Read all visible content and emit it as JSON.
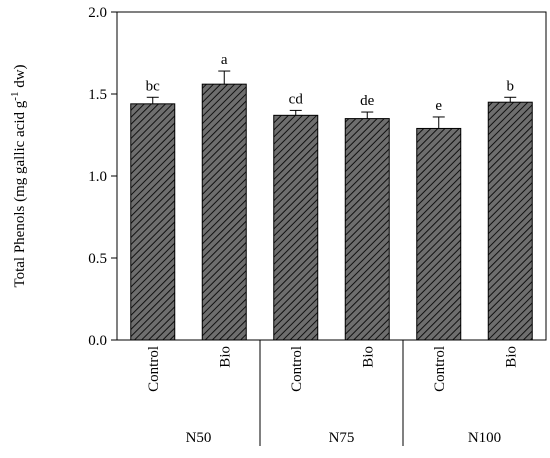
{
  "chart_data": {
    "type": "bar",
    "y_label": "Total Phenols (mg gallic acid g",
    "y_label_superscript": "-1",
    "y_label_end": " dw)",
    "categories": [
      "Control",
      "Bio",
      "Control",
      "Bio",
      "Control",
      "Bio"
    ],
    "groups": [
      "N50",
      "N75",
      "N100"
    ],
    "values": [
      1.44,
      1.56,
      1.37,
      1.35,
      1.29,
      1.45
    ],
    "errors": [
      0.04,
      0.08,
      0.03,
      0.04,
      0.07,
      0.03
    ],
    "value_labels": [
      "bc",
      "a",
      "cd",
      "de",
      "e",
      "b"
    ],
    "color": "#6e6e6e",
    "ylim": [
      0,
      2
    ],
    "yticks": [
      {
        "value": 0,
        "label": "0.0"
      },
      {
        "value": 0.5,
        "label": "0.5"
      },
      {
        "value": 1,
        "label": "1.0"
      },
      {
        "value": 1.5,
        "label": "1.5"
      },
      {
        "value": 2,
        "label": "2.0"
      }
    ]
  }
}
